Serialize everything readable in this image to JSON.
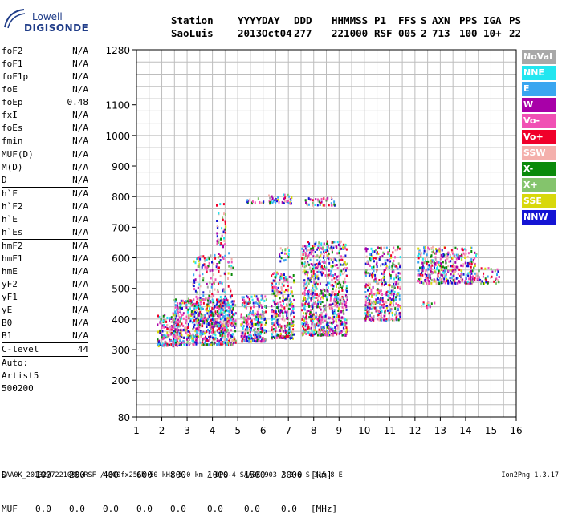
{
  "logo": {
    "line1": "Lowell",
    "line2": "DIGISONDE"
  },
  "header": {
    "labels": [
      "Station",
      "YYYY",
      "DAY",
      "DDD",
      "HHMMSS",
      "P1",
      "FFS",
      "S",
      "AXN",
      "PPS",
      "IGA",
      "PS"
    ],
    "values": [
      "SaoLuis",
      "2013",
      "Oct04",
      "277",
      "221000",
      "RSF",
      "005",
      "2",
      "713",
      "100",
      "10+",
      "22"
    ]
  },
  "params": {
    "group1": [
      {
        "name": "foF2",
        "value": "N/A"
      },
      {
        "name": "foF1",
        "value": "N/A"
      },
      {
        "name": "foF1p",
        "value": "N/A"
      },
      {
        "name": "foE",
        "value": "N/A"
      },
      {
        "name": "foEp",
        "value": "0.48"
      },
      {
        "name": "fxI",
        "value": "N/A"
      },
      {
        "name": "foEs",
        "value": "N/A"
      },
      {
        "name": "fmin",
        "value": "N/A"
      }
    ],
    "group2": [
      {
        "name": "MUF(D)",
        "value": "N/A"
      },
      {
        "name": "M(D)",
        "value": "N/A"
      },
      {
        "name": "D",
        "value": "N/A"
      }
    ],
    "group3": [
      {
        "name": "h`F",
        "value": "N/A"
      },
      {
        "name": "h`F2",
        "value": "N/A"
      },
      {
        "name": "h`E",
        "value": "N/A"
      },
      {
        "name": "h`Es",
        "value": "N/A"
      }
    ],
    "group4": [
      {
        "name": "hmF2",
        "value": "N/A"
      },
      {
        "name": "hmF1",
        "value": "N/A"
      },
      {
        "name": "hmE",
        "value": "N/A"
      },
      {
        "name": "yF2",
        "value": "N/A"
      },
      {
        "name": "yF1",
        "value": "N/A"
      },
      {
        "name": "yE",
        "value": "N/A"
      },
      {
        "name": "B0",
        "value": "N/A"
      },
      {
        "name": "B1",
        "value": "N/A"
      }
    ],
    "clevel": {
      "name": "C-level",
      "value": "44"
    },
    "auto": [
      "Auto:",
      "Artist5",
      "500200"
    ]
  },
  "legend": [
    {
      "label": "NoVal",
      "color": "#a8a8a8"
    },
    {
      "label": "NNE",
      "color": "#22e6f0"
    },
    {
      "label": "E",
      "color": "#3aa6f0"
    },
    {
      "label": "W",
      "color": "#a800a8"
    },
    {
      "label": "Vo-",
      "color": "#f050b4"
    },
    {
      "label": "Vo+",
      "color": "#f0002a"
    },
    {
      "label": "SSW",
      "color": "#f4b0ac"
    },
    {
      "label": "X-",
      "color": "#0a8a0a"
    },
    {
      "label": "X+",
      "color": "#84c46c"
    },
    {
      "label": "SSE",
      "color": "#d8d80a"
    },
    {
      "label": "NNW",
      "color": "#1414d4"
    }
  ],
  "chart_data": {
    "type": "scatter",
    "title": "",
    "xlabel": "",
    "ylabel": "",
    "xlim": [
      1,
      16
    ],
    "ylim": [
      80,
      1280
    ],
    "x_ticks": [
      "1",
      "2",
      "3",
      "4",
      "5",
      "6",
      "7",
      "8",
      "9",
      "10",
      "11",
      "12",
      "13",
      "14",
      "15",
      "16"
    ],
    "y_ticks": [
      {
        "v": 80,
        "label": "80"
      },
      {
        "v": 200,
        "label": "200"
      },
      {
        "v": 300,
        "label": "300"
      },
      {
        "v": 400,
        "label": "400"
      },
      {
        "v": 500,
        "label": "500"
      },
      {
        "v": 600,
        "label": "600"
      },
      {
        "v": 700,
        "label": "700"
      },
      {
        "v": 800,
        "label": "800"
      },
      {
        "v": 900,
        "label": "900"
      },
      {
        "v": 1000,
        "label": "1000"
      },
      {
        "v": 1100,
        "label": "1100"
      },
      {
        "v": 1280,
        "label": "1280"
      }
    ],
    "grid": true,
    "clusters": [
      {
        "x": [
          1.8,
          2.6
        ],
        "y": [
          315,
          420
        ],
        "n": 160
      },
      {
        "x": [
          2.4,
          4.9
        ],
        "y": [
          320,
          470
        ],
        "n": 700
      },
      {
        "x": [
          3.2,
          4.8
        ],
        "y": [
          380,
          620
        ],
        "n": 260
      },
      {
        "x": [
          4.1,
          4.5
        ],
        "y": [
          640,
          780
        ],
        "n": 40
      },
      {
        "x": [
          5.1,
          6.1
        ],
        "y": [
          330,
          480
        ],
        "n": 280
      },
      {
        "x": [
          6.3,
          7.2
        ],
        "y": [
          340,
          560
        ],
        "n": 300
      },
      {
        "x": [
          6.6,
          7.0
        ],
        "y": [
          590,
          640
        ],
        "n": 20
      },
      {
        "x": [
          6.2,
          7.1
        ],
        "y": [
          780,
          810
        ],
        "n": 40
      },
      {
        "x": [
          5.3,
          6.0
        ],
        "y": [
          780,
          800
        ],
        "n": 14
      },
      {
        "x": [
          7.5,
          9.3
        ],
        "y": [
          350,
          660
        ],
        "n": 800
      },
      {
        "x": [
          7.6,
          8.8
        ],
        "y": [
          775,
          800
        ],
        "n": 40
      },
      {
        "x": [
          10.0,
          11.4
        ],
        "y": [
          400,
          640
        ],
        "n": 420
      },
      {
        "x": [
          12.1,
          14.4
        ],
        "y": [
          520,
          640
        ],
        "n": 380
      },
      {
        "x": [
          14.4,
          15.3
        ],
        "y": [
          520,
          570
        ],
        "n": 40
      },
      {
        "x": [
          12.1,
          12.8
        ],
        "y": [
          440,
          460
        ],
        "n": 14
      }
    ]
  },
  "footer": {
    "d_label": "D",
    "d_values": [
      "100",
      "200",
      "400",
      "600",
      "800",
      "1000",
      "1500",
      "3000"
    ],
    "d_unit": "[km]",
    "muf_label": "MUF",
    "muf_values": [
      "0.0",
      "0.0",
      "0.0",
      "0.0",
      "0.0",
      "0.0",
      "0.0",
      "0.0"
    ],
    "muf_unit": "[MHz]",
    "file_line": "SAA0K_2013277221000.RSF / 300fx256h 50 kHz 5.0 km / DPS-4 SAA0K 903 / 2.6 S 315.8 E",
    "version": "Ion2Png 1.3.17"
  }
}
